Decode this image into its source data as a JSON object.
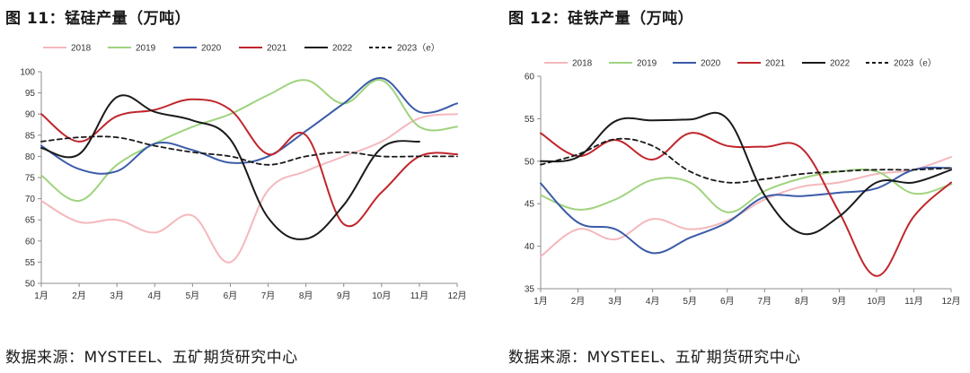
{
  "charts": [
    {
      "fig_title": "图 11：锰硅产量（万吨）",
      "source": "数据来源：MYSTEEL、五矿期货研究中心"
    },
    {
      "fig_title": "图 12：硅铁产量（万吨）",
      "source": "数据来源：MYSTEEL、五矿期货研究中心"
    }
  ],
  "chart_data": [
    {
      "type": "line",
      "title": "图 11：锰硅产量（万吨）",
      "xlabel": "",
      "ylabel": "",
      "categories": [
        "1月",
        "2月",
        "3月",
        "4月",
        "5月",
        "6月",
        "7月",
        "8月",
        "9月",
        "10月",
        "11月",
        "12月"
      ],
      "ylim": [
        50,
        100
      ],
      "yticks": [
        50,
        55,
        60,
        65,
        70,
        75,
        80,
        85,
        90,
        95,
        100
      ],
      "grid": false,
      "legend_position": "top",
      "series": [
        {
          "name": "2018",
          "color": "#f4b8bd",
          "dash": false,
          "values": [
            69.5,
            64.5,
            65.0,
            62.0,
            66.0,
            55.0,
            72.0,
            76.5,
            80.0,
            83.5,
            89.0,
            90.0
          ]
        },
        {
          "name": "2019",
          "color": "#9fd37e",
          "dash": false,
          "values": [
            75.5,
            69.5,
            78.0,
            83.0,
            87.0,
            90.0,
            94.5,
            98.0,
            92.5,
            98.0,
            87.0,
            87.0
          ]
        },
        {
          "name": "2020",
          "color": "#3a5ba8",
          "dash": false,
          "values": [
            82.5,
            77.0,
            76.5,
            83.0,
            81.5,
            78.5,
            80.0,
            86.0,
            92.5,
            98.5,
            90.5,
            92.5
          ]
        },
        {
          "name": "2021",
          "color": "#c0262c",
          "dash": false,
          "values": [
            90.0,
            83.5,
            89.5,
            91.0,
            93.5,
            91.0,
            80.5,
            85.0,
            64.0,
            71.5,
            80.0,
            80.5
          ]
        },
        {
          "name": "2022",
          "color": "#1a1a1a",
          "dash": false,
          "values": [
            82.0,
            80.5,
            94.0,
            90.5,
            88.5,
            84.0,
            65.5,
            60.5,
            68.5,
            82.0,
            83.5,
            null
          ]
        },
        {
          "name": "2023（e）",
          "color": "#1a1a1a",
          "dash": true,
          "values": [
            83.5,
            84.5,
            84.5,
            82.5,
            81.0,
            80.0,
            78.0,
            80.0,
            81.0,
            80.0,
            80.0,
            80.0
          ]
        }
      ]
    },
    {
      "type": "line",
      "title": "图 12：硅铁产量（万吨）",
      "xlabel": "",
      "ylabel": "",
      "categories": [
        "1月",
        "2月",
        "3月",
        "4月",
        "5月",
        "6月",
        "7月",
        "8月",
        "9月",
        "10月",
        "11月",
        "12月"
      ],
      "ylim": [
        35,
        60
      ],
      "yticks": [
        35,
        40,
        45,
        50,
        55,
        60
      ],
      "grid": false,
      "legend_position": "top",
      "series": [
        {
          "name": "2018",
          "color": "#f4b8bd",
          "dash": false,
          "values": [
            38.8,
            42.0,
            40.8,
            43.2,
            42.0,
            43.0,
            45.5,
            47.0,
            47.5,
            48.5,
            49.0,
            50.5
          ]
        },
        {
          "name": "2019",
          "color": "#9fd37e",
          "dash": false,
          "values": [
            46.0,
            44.3,
            45.5,
            47.8,
            47.5,
            44.0,
            46.5,
            48.0,
            48.8,
            48.8,
            46.2,
            47.3
          ]
        },
        {
          "name": "2020",
          "color": "#3a5ba8",
          "dash": false,
          "values": [
            47.4,
            42.8,
            42.0,
            39.2,
            41.0,
            42.8,
            45.8,
            45.9,
            46.3,
            46.8,
            49.0,
            49.2
          ]
        },
        {
          "name": "2021",
          "color": "#c0262c",
          "dash": false,
          "values": [
            53.3,
            50.6,
            52.5,
            50.2,
            53.3,
            51.8,
            51.7,
            51.5,
            44.0,
            36.5,
            43.5,
            47.5
          ]
        },
        {
          "name": "2022",
          "color": "#1a1a1a",
          "dash": false,
          "values": [
            50.0,
            50.5,
            54.7,
            54.8,
            54.9,
            55.0,
            46.0,
            41.5,
            43.5,
            47.5,
            47.5,
            49.0
          ]
        },
        {
          "name": "2023（e）",
          "color": "#1a1a1a",
          "dash": true,
          "values": [
            49.6,
            50.8,
            52.6,
            51.8,
            48.8,
            47.5,
            47.9,
            48.5,
            48.8,
            49.0,
            49.0,
            49.2
          ]
        }
      ]
    }
  ]
}
